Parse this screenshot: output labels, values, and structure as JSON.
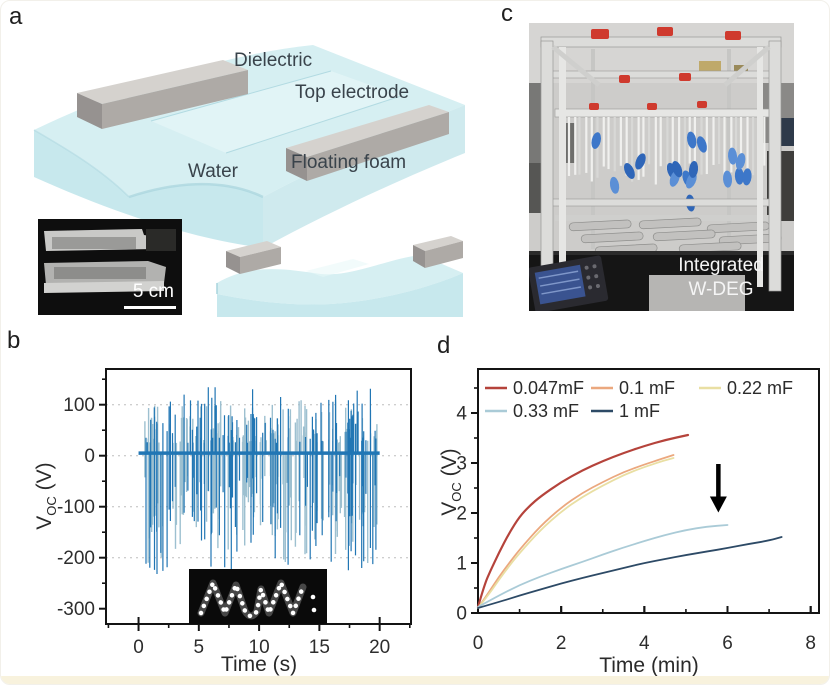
{
  "figure": {
    "background": "#ffffff",
    "bottom_strip_color": "#f8f2dd"
  },
  "panels": {
    "a": {
      "letter": "a"
    },
    "b": {
      "letter": "b"
    },
    "c": {
      "letter": "c"
    },
    "d": {
      "letter": "d"
    }
  },
  "panel_a": {
    "labels": {
      "dielectric": "Dielectric",
      "top_electrode": "Top electrode",
      "water": "Water",
      "floating_foam": "Floating foam"
    },
    "inset": {
      "scale_text": "5 cm"
    },
    "colors": {
      "water_top": "#d6eff2",
      "water_front": "#c7e8ed",
      "water_side": "#cfeaee",
      "wave_shadow": "#a8d4dd",
      "strip": "#e8f7f8",
      "foam_top": "#d5d2ce",
      "foam_side": "#aeaaa6",
      "foam_cap": "#969290",
      "photo_bg": "#0e0e0e",
      "photo_bar_light": "#c9c9c7",
      "photo_bar_mid": "#b2b2b0"
    }
  },
  "panel_c": {
    "caption": {
      "line1": "Integrated",
      "line2": "W-DEG"
    },
    "colors": {
      "wall": "#cdccca",
      "frame": "#dcdcda",
      "frame_edge": "#98989 6",
      "frame_bright": "#e6e6e4",
      "bench": "#151515",
      "bench_lip": "#2b2b2b",
      "cabinet": "#d6d5d3",
      "glove_blue": "#3d77c9",
      "glove_blue2": "#2f66b8",
      "glove_blue3": "#5b8fd6",
      "clamp_red": "#cf3a2e",
      "tube": "#f0f0ee",
      "tube_dim": "#d8d8d6",
      "cylinder": "#c2c1bf",
      "cylinder_edge": "#8e8e8c",
      "scope_body": "#2a2a30",
      "scope_screen": "#3a5390",
      "scope_lines": "#7f97c9"
    },
    "seed": 11,
    "tube_count": 36,
    "glove_count": 18
  },
  "chart_data": [
    {
      "type": "line",
      "panel": "b",
      "title": "",
      "xlabel": "Time (s)",
      "ylabel": {
        "pre": "V",
        "sub": "OC",
        "post": " (V)"
      },
      "xlim": [
        -2.7,
        22.6
      ],
      "ylim": [
        -330,
        170
      ],
      "xticks": [
        0,
        5,
        10,
        15,
        20
      ],
      "x_minor_step": 2.5,
      "yticks": [
        100,
        0,
        -100,
        -200,
        -300
      ],
      "y_minor_step": 50,
      "grid_y": [
        100,
        0,
        -100,
        -200
      ],
      "grid_color": "#bdbdbd",
      "signal": {
        "description": "stochastic bipolar voltage spikes of wave-driven DEG",
        "baseline_v": 5,
        "typical_pos_peak_v": [
          30,
          100
        ],
        "max_pos_peak_v": 135,
        "typical_neg_peak_v": [
          -60,
          -200
        ],
        "max_neg_peak_v": -232,
        "duration_s": 20,
        "n_dark": 120,
        "n_light": 150,
        "seed": 42,
        "colors": {
          "dark": "#2176b4",
          "light": "#9dc0d0"
        }
      },
      "inset_led_panel": {
        "present": true,
        "content": "LED array lit in zigzag pattern"
      }
    },
    {
      "type": "line",
      "panel": "d",
      "title": "",
      "xlabel": "Time (min)",
      "ylabel": {
        "pre": "V",
        "sub": "OC",
        "post": " (V)"
      },
      "xlim": [
        0,
        8.2
      ],
      "ylim": [
        0,
        4.88
      ],
      "xticks": [
        0,
        2,
        4,
        6,
        8
      ],
      "x_minor_step": 1,
      "yticks": [
        0,
        1,
        2,
        3,
        4
      ],
      "y_minor_step": 0.5,
      "series": [
        {
          "name": "0.047mF",
          "color": "#b5433b",
          "width": 2.2,
          "x": [
            0,
            0.15,
            0.3,
            0.5,
            0.75,
            1,
            1.25,
            1.5,
            2,
            2.5,
            3,
            3.5,
            4,
            4.5,
            5.05
          ],
          "y": [
            0.12,
            0.55,
            0.85,
            1.2,
            1.6,
            1.93,
            2.15,
            2.33,
            2.62,
            2.85,
            3.04,
            3.2,
            3.34,
            3.46,
            3.56
          ]
        },
        {
          "name": "0.1 mF",
          "color": "#eba87e",
          "width": 1.8,
          "x": [
            0,
            0.25,
            0.5,
            0.75,
            1,
            1.5,
            2,
            2.5,
            3,
            3.5,
            4,
            4.4,
            4.7
          ],
          "y": [
            0.1,
            0.4,
            0.72,
            1.0,
            1.27,
            1.74,
            2.11,
            2.4,
            2.62,
            2.82,
            2.97,
            3.08,
            3.16
          ]
        },
        {
          "name": "0.22 mF",
          "color": "#e9dfa3",
          "width": 1.8,
          "x": [
            0,
            0.25,
            0.5,
            0.75,
            1,
            1.5,
            2,
            2.5,
            3,
            3.5,
            4,
            4.4,
            4.7
          ],
          "y": [
            0.1,
            0.36,
            0.66,
            0.94,
            1.2,
            1.66,
            2.03,
            2.32,
            2.55,
            2.76,
            2.92,
            3.03,
            3.1
          ]
        },
        {
          "name": "0.33 mF",
          "color": "#aacbd7",
          "width": 1.8,
          "x": [
            0,
            0.5,
            1,
            1.5,
            2,
            2.5,
            3,
            3.5,
            4,
            4.5,
            5,
            5.5,
            6
          ],
          "y": [
            0.12,
            0.35,
            0.56,
            0.73,
            0.88,
            1.02,
            1.17,
            1.31,
            1.44,
            1.56,
            1.66,
            1.73,
            1.76
          ]
        },
        {
          "name": "1 mF",
          "color": "#2d4a66",
          "width": 1.8,
          "x": [
            0,
            0.5,
            1,
            1.5,
            2,
            2.5,
            3,
            3.5,
            4,
            4.5,
            5,
            5.5,
            6,
            6.5,
            7,
            7.3
          ],
          "y": [
            0.1,
            0.22,
            0.35,
            0.47,
            0.59,
            0.7,
            0.8,
            0.9,
            1.0,
            1.08,
            1.16,
            1.23,
            1.3,
            1.38,
            1.45,
            1.52
          ]
        }
      ],
      "legend": {
        "position": "top-inside",
        "rows": [
          [
            0,
            1,
            2
          ],
          [
            3,
            4
          ]
        ]
      },
      "annotation_arrow": {
        "x_min": 5.78,
        "y_from": 2.98,
        "y_to": 2.05,
        "color": "#000000"
      }
    }
  ]
}
